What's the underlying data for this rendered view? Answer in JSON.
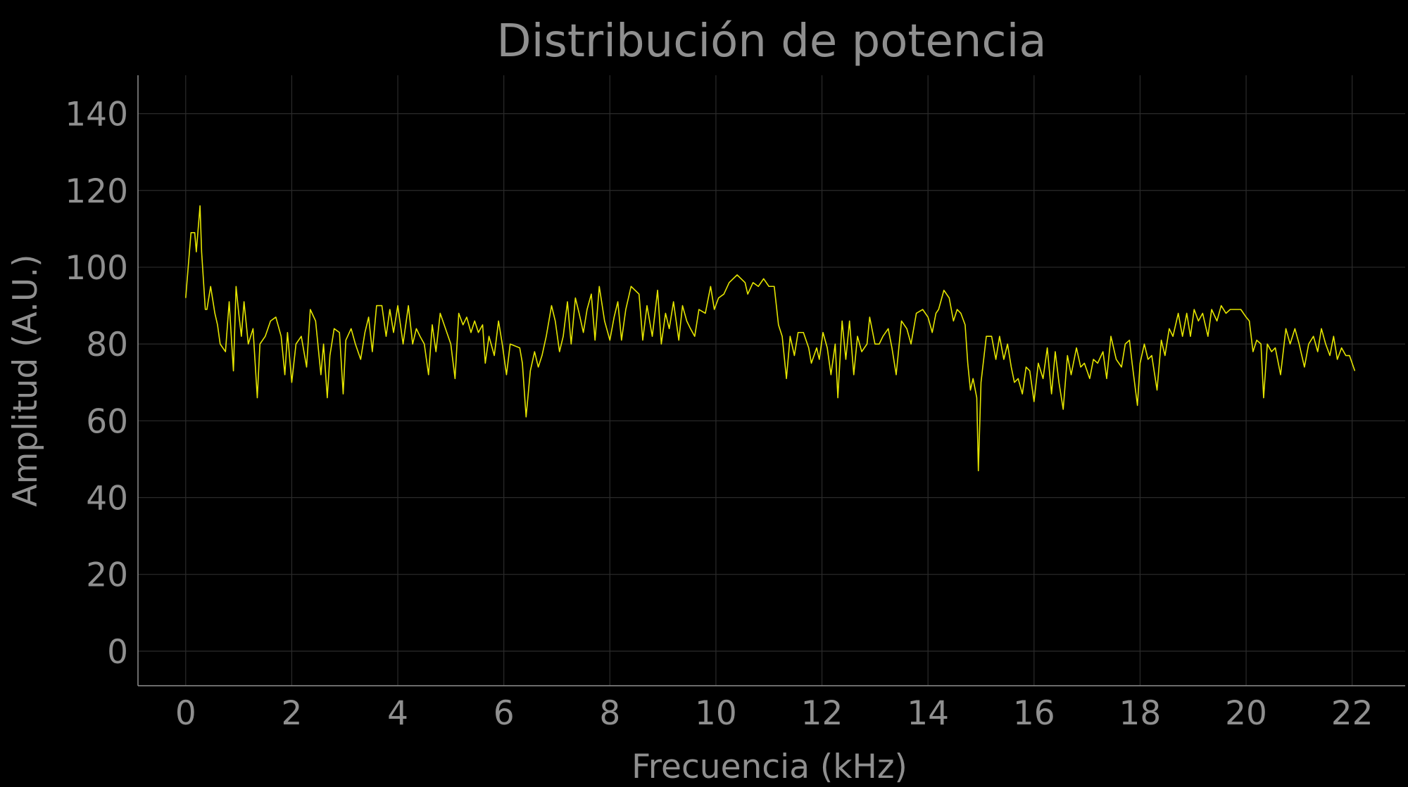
{
  "chart_data": {
    "type": "line",
    "title": "Distribución de potencia",
    "xlabel": "Frecuencia (kHz)",
    "ylabel": "Amplitud (A.U.)",
    "xlim": [
      -0.9,
      23.0
    ],
    "ylim": [
      -9,
      150
    ],
    "xticks": [
      0,
      2,
      4,
      6,
      8,
      10,
      12,
      14,
      16,
      18,
      20,
      22
    ],
    "yticks": [
      0,
      20,
      40,
      60,
      80,
      100,
      120,
      140
    ],
    "grid": true,
    "colors": {
      "background": "#000000",
      "line": "#e5e500",
      "text": "#8f8f8f",
      "grid": "#2b2b2b"
    },
    "series": [
      {
        "values": [
          [
            0.0,
            92
          ],
          [
            0.1,
            109
          ],
          [
            0.17,
            109
          ],
          [
            0.2,
            104
          ],
          [
            0.27,
            116
          ],
          [
            0.3,
            104
          ],
          [
            0.37,
            89
          ],
          [
            0.4,
            89
          ],
          [
            0.47,
            95
          ],
          [
            0.55,
            88
          ],
          [
            0.6,
            85
          ],
          [
            0.65,
            80
          ],
          [
            0.75,
            78
          ],
          [
            0.82,
            91
          ],
          [
            0.9,
            73
          ],
          [
            0.95,
            95
          ],
          [
            1.0,
            88
          ],
          [
            1.05,
            82
          ],
          [
            1.1,
            91
          ],
          [
            1.18,
            80
          ],
          [
            1.27,
            84
          ],
          [
            1.35,
            66
          ],
          [
            1.4,
            80
          ],
          [
            1.5,
            82
          ],
          [
            1.6,
            86
          ],
          [
            1.7,
            87
          ],
          [
            1.8,
            82
          ],
          [
            1.87,
            72
          ],
          [
            1.92,
            83
          ],
          [
            2.0,
            70
          ],
          [
            2.08,
            80
          ],
          [
            2.18,
            82
          ],
          [
            2.28,
            74
          ],
          [
            2.35,
            89
          ],
          [
            2.45,
            86
          ],
          [
            2.55,
            72
          ],
          [
            2.6,
            80
          ],
          [
            2.67,
            66
          ],
          [
            2.72,
            77
          ],
          [
            2.8,
            84
          ],
          [
            2.9,
            83
          ],
          [
            2.97,
            67
          ],
          [
            3.02,
            81
          ],
          [
            3.12,
            84
          ],
          [
            3.2,
            80
          ],
          [
            3.3,
            76
          ],
          [
            3.38,
            83
          ],
          [
            3.45,
            87
          ],
          [
            3.52,
            78
          ],
          [
            3.6,
            90
          ],
          [
            3.7,
            90
          ],
          [
            3.78,
            82
          ],
          [
            3.85,
            89
          ],
          [
            3.92,
            83
          ],
          [
            4.0,
            90
          ],
          [
            4.1,
            80
          ],
          [
            4.2,
            90
          ],
          [
            4.28,
            80
          ],
          [
            4.35,
            84
          ],
          [
            4.42,
            82
          ],
          [
            4.5,
            80
          ],
          [
            4.58,
            72
          ],
          [
            4.65,
            85
          ],
          [
            4.72,
            78
          ],
          [
            4.8,
            88
          ],
          [
            4.9,
            84
          ],
          [
            5.0,
            80
          ],
          [
            5.08,
            71
          ],
          [
            5.15,
            88
          ],
          [
            5.23,
            85
          ],
          [
            5.3,
            87
          ],
          [
            5.38,
            83
          ],
          [
            5.45,
            86
          ],
          [
            5.52,
            83
          ],
          [
            5.6,
            85
          ],
          [
            5.65,
            75
          ],
          [
            5.72,
            82
          ],
          [
            5.82,
            77
          ],
          [
            5.9,
            86
          ],
          [
            5.97,
            80
          ],
          [
            6.05,
            72
          ],
          [
            6.12,
            80
          ],
          [
            6.3,
            79
          ],
          [
            6.35,
            75
          ],
          [
            6.42,
            61
          ],
          [
            6.5,
            73
          ],
          [
            6.58,
            78
          ],
          [
            6.65,
            74
          ],
          [
            6.72,
            77
          ],
          [
            6.8,
            82
          ],
          [
            6.9,
            90
          ],
          [
            6.97,
            86
          ],
          [
            7.05,
            78
          ],
          [
            7.12,
            82
          ],
          [
            7.2,
            91
          ],
          [
            7.27,
            80
          ],
          [
            7.35,
            92
          ],
          [
            7.42,
            88
          ],
          [
            7.5,
            83
          ],
          [
            7.57,
            89
          ],
          [
            7.65,
            93
          ],
          [
            7.72,
            81
          ],
          [
            7.8,
            95
          ],
          [
            7.9,
            86
          ],
          [
            8.0,
            81
          ],
          [
            8.08,
            87
          ],
          [
            8.15,
            91
          ],
          [
            8.22,
            81
          ],
          [
            8.3,
            89
          ],
          [
            8.4,
            95
          ],
          [
            8.55,
            93
          ],
          [
            8.62,
            81
          ],
          [
            8.7,
            90
          ],
          [
            8.8,
            82
          ],
          [
            8.9,
            94
          ],
          [
            8.97,
            80
          ],
          [
            9.05,
            88
          ],
          [
            9.12,
            84
          ],
          [
            9.2,
            91
          ],
          [
            9.3,
            81
          ],
          [
            9.37,
            90
          ],
          [
            9.45,
            86
          ],
          [
            9.52,
            84
          ],
          [
            9.6,
            82
          ],
          [
            9.68,
            89
          ],
          [
            9.8,
            88
          ],
          [
            9.9,
            95
          ],
          [
            9.97,
            89
          ],
          [
            10.05,
            92
          ],
          [
            10.15,
            93
          ],
          [
            10.25,
            96
          ],
          [
            10.4,
            98
          ],
          [
            10.55,
            96
          ],
          [
            10.6,
            93
          ],
          [
            10.7,
            96
          ],
          [
            10.8,
            95
          ],
          [
            10.9,
            97
          ],
          [
            11.0,
            95
          ],
          [
            11.1,
            95
          ],
          [
            11.18,
            85
          ],
          [
            11.25,
            82
          ],
          [
            11.33,
            71
          ],
          [
            11.4,
            82
          ],
          [
            11.48,
            77
          ],
          [
            11.55,
            83
          ],
          [
            11.65,
            83
          ],
          [
            11.75,
            79
          ],
          [
            11.8,
            75
          ],
          [
            11.9,
            79
          ],
          [
            11.95,
            76
          ],
          [
            12.02,
            83
          ],
          [
            12.1,
            79
          ],
          [
            12.17,
            72
          ],
          [
            12.25,
            80
          ],
          [
            12.3,
            66
          ],
          [
            12.38,
            86
          ],
          [
            12.45,
            76
          ],
          [
            12.52,
            86
          ],
          [
            12.6,
            72
          ],
          [
            12.67,
            82
          ],
          [
            12.75,
            78
          ],
          [
            12.85,
            80
          ],
          [
            12.9,
            87
          ],
          [
            13.0,
            80
          ],
          [
            13.08,
            80
          ],
          [
            13.15,
            82
          ],
          [
            13.25,
            84
          ],
          [
            13.32,
            79
          ],
          [
            13.4,
            72
          ],
          [
            13.5,
            86
          ],
          [
            13.6,
            84
          ],
          [
            13.68,
            80
          ],
          [
            13.78,
            88
          ],
          [
            13.9,
            89
          ],
          [
            14.0,
            87
          ],
          [
            14.08,
            83
          ],
          [
            14.15,
            88
          ],
          [
            14.2,
            89
          ],
          [
            14.3,
            94
          ],
          [
            14.4,
            92
          ],
          [
            14.48,
            86
          ],
          [
            14.55,
            89
          ],
          [
            14.62,
            88
          ],
          [
            14.7,
            85
          ],
          [
            14.75,
            75
          ],
          [
            14.8,
            68
          ],
          [
            14.85,
            71
          ],
          [
            14.92,
            66
          ],
          [
            14.95,
            47
          ],
          [
            15.0,
            70
          ],
          [
            15.05,
            76
          ],
          [
            15.1,
            82
          ],
          [
            15.2,
            82
          ],
          [
            15.28,
            76
          ],
          [
            15.35,
            82
          ],
          [
            15.43,
            76
          ],
          [
            15.5,
            80
          ],
          [
            15.57,
            74
          ],
          [
            15.63,
            70
          ],
          [
            15.7,
            71
          ],
          [
            15.78,
            67
          ],
          [
            15.85,
            74
          ],
          [
            15.92,
            73
          ],
          [
            16.0,
            65
          ],
          [
            16.08,
            75
          ],
          [
            16.17,
            71
          ],
          [
            16.25,
            79
          ],
          [
            16.33,
            67
          ],
          [
            16.4,
            78
          ],
          [
            16.47,
            70
          ],
          [
            16.55,
            63
          ],
          [
            16.63,
            77
          ],
          [
            16.7,
            72
          ],
          [
            16.8,
            79
          ],
          [
            16.88,
            74
          ],
          [
            16.95,
            75
          ],
          [
            17.05,
            71
          ],
          [
            17.12,
            76
          ],
          [
            17.2,
            75
          ],
          [
            17.3,
            78
          ],
          [
            17.37,
            71
          ],
          [
            17.45,
            82
          ],
          [
            17.55,
            76
          ],
          [
            17.65,
            74
          ],
          [
            17.72,
            80
          ],
          [
            17.8,
            81
          ],
          [
            17.85,
            75
          ],
          [
            17.95,
            64
          ],
          [
            18.0,
            75
          ],
          [
            18.08,
            80
          ],
          [
            18.15,
            76
          ],
          [
            18.22,
            77
          ],
          [
            18.32,
            68
          ],
          [
            18.4,
            81
          ],
          [
            18.47,
            77
          ],
          [
            18.55,
            84
          ],
          [
            18.62,
            82
          ],
          [
            18.72,
            88
          ],
          [
            18.8,
            82
          ],
          [
            18.88,
            88
          ],
          [
            18.95,
            82
          ],
          [
            19.02,
            89
          ],
          [
            19.1,
            86
          ],
          [
            19.18,
            88
          ],
          [
            19.28,
            82
          ],
          [
            19.35,
            89
          ],
          [
            19.45,
            86
          ],
          [
            19.53,
            90
          ],
          [
            19.62,
            88
          ],
          [
            19.7,
            89
          ],
          [
            19.8,
            89
          ],
          [
            19.9,
            89
          ],
          [
            20.0,
            87
          ],
          [
            20.06,
            86
          ],
          [
            20.13,
            78
          ],
          [
            20.2,
            81
          ],
          [
            20.28,
            80
          ],
          [
            20.33,
            66
          ],
          [
            20.4,
            80
          ],
          [
            20.48,
            78
          ],
          [
            20.55,
            79
          ],
          [
            20.65,
            72
          ],
          [
            20.75,
            84
          ],
          [
            20.83,
            80
          ],
          [
            20.92,
            84
          ],
          [
            21.0,
            80
          ],
          [
            21.1,
            74
          ],
          [
            21.18,
            80
          ],
          [
            21.27,
            82
          ],
          [
            21.35,
            78
          ],
          [
            21.42,
            84
          ],
          [
            21.5,
            80
          ],
          [
            21.58,
            77
          ],
          [
            21.65,
            82
          ],
          [
            21.72,
            76
          ],
          [
            21.8,
            79
          ],
          [
            21.88,
            77
          ],
          [
            21.95,
            77
          ],
          [
            22.05,
            73
          ]
        ]
      }
    ]
  }
}
